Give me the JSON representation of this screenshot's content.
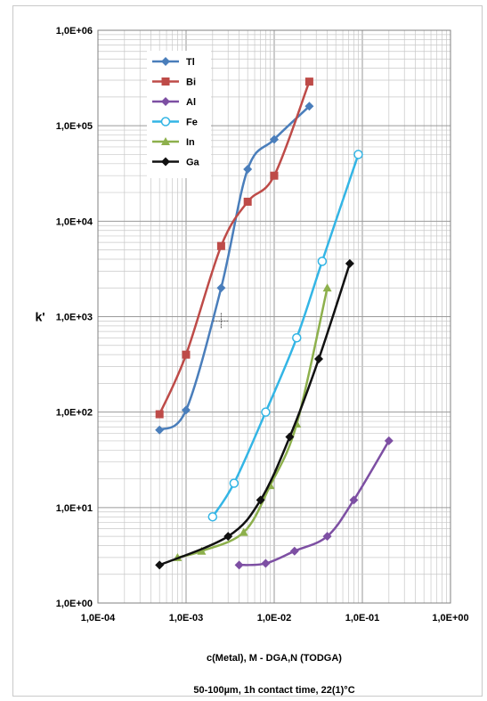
{
  "chart_data": {
    "type": "line",
    "xscale": "log",
    "yscale": "log",
    "xlim": [
      0.0001,
      1
    ],
    "ylim": [
      1,
      1000000
    ],
    "grid": true,
    "legend_position": "top-left",
    "xlabel": "c(Metal), M - DGA,N (TODGA)",
    "ylabel": "k'",
    "note": "50-100µm, 1h contact time, 22(1)°C",
    "x_tick_labels": [
      "1,0E-04",
      "1,0E-03",
      "1,0E-02",
      "1,0E-01",
      "1,0E+00"
    ],
    "y_tick_labels": [
      "1,0E+00",
      "1,0E+01",
      "1,0E+02",
      "1,0E+03",
      "1,0E+04",
      "1,0E+05",
      "1,0E+06"
    ],
    "series": [
      {
        "name": "Tl",
        "color": "#4a7ebb",
        "marker": "diamond",
        "x": [
          0.0005,
          0.001,
          0.0025,
          0.005,
          0.01,
          0.025
        ],
        "y": [
          65,
          105,
          2000,
          35000,
          72000,
          160000
        ]
      },
      {
        "name": "Bi",
        "color": "#be4b48",
        "marker": "square",
        "x": [
          0.0005,
          0.001,
          0.0025,
          0.005,
          0.01,
          0.025
        ],
        "y": [
          95,
          400,
          5500,
          16000,
          30000,
          290000
        ]
      },
      {
        "name": "Al",
        "color": "#7d4fa3",
        "marker": "diamond",
        "x": [
          0.004,
          0.008,
          0.017,
          0.04,
          0.08,
          0.2
        ],
        "y": [
          2.5,
          2.6,
          3.5,
          5,
          12,
          50
        ]
      },
      {
        "name": "Fe",
        "color": "#33b5e5",
        "marker": "circle-open",
        "x": [
          0.002,
          0.0035,
          0.008,
          0.018,
          0.035,
          0.09
        ],
        "y": [
          8,
          18,
          100,
          600,
          3800,
          50000
        ]
      },
      {
        "name": "In",
        "color": "#8db04c",
        "marker": "triangle",
        "x": [
          0.0008,
          0.0015,
          0.0045,
          0.009,
          0.018,
          0.04
        ],
        "y": [
          3,
          3.5,
          5.5,
          17,
          75,
          2000
        ]
      },
      {
        "name": "Ga",
        "color": "#111111",
        "marker": "diamond",
        "x": [
          0.0005,
          0.003,
          0.007,
          0.015,
          0.032,
          0.072
        ],
        "y": [
          2.5,
          5,
          12,
          55,
          360,
          3600
        ]
      }
    ]
  }
}
